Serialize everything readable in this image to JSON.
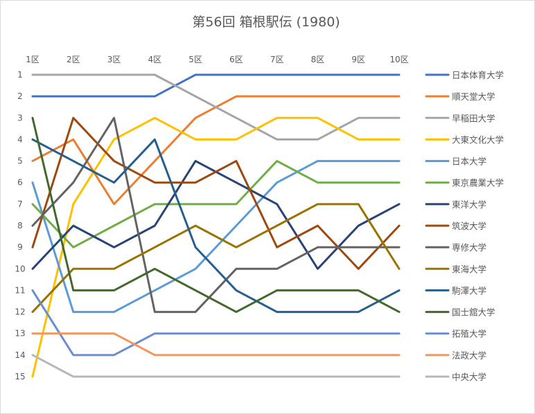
{
  "chart_data": {
    "type": "line",
    "title": "第56回 箱根駅伝 (1980)",
    "xlabel": "",
    "ylabel": "",
    "categories": [
      "1区",
      "2区",
      "3区",
      "4区",
      "5区",
      "6区",
      "7区",
      "8区",
      "9区",
      "10区"
    ],
    "y_ticks": [
      "1",
      "2",
      "3",
      "4",
      "5",
      "6",
      "7",
      "8",
      "9",
      "10",
      "11",
      "12",
      "13",
      "14",
      "15"
    ],
    "ylim": [
      1,
      15
    ],
    "y_inverted": true,
    "grid": false,
    "legend_position": "right",
    "series": [
      {
        "name": "日本体育大学",
        "color": "#4472C4",
        "values": [
          2,
          2,
          2,
          2,
          1,
          1,
          1,
          1,
          1,
          1
        ]
      },
      {
        "name": "順天堂大学",
        "color": "#ED7D31",
        "values": [
          5,
          4,
          7,
          5,
          3,
          2,
          2,
          2,
          2,
          2
        ]
      },
      {
        "name": "早稲田大学",
        "color": "#A5A5A5",
        "values": [
          1,
          1,
          1,
          1,
          2,
          3,
          4,
          4,
          3,
          3
        ]
      },
      {
        "name": "大東文化大学",
        "color": "#FFC000",
        "values": [
          15,
          7,
          4,
          3,
          4,
          4,
          3,
          3,
          4,
          4
        ]
      },
      {
        "name": "日本大学",
        "color": "#5B9BD5",
        "values": [
          6,
          12,
          12,
          11,
          10,
          8,
          6,
          5,
          5,
          5
        ]
      },
      {
        "name": "東京農業大学",
        "color": "#70AD47",
        "values": [
          7,
          9,
          8,
          7,
          7,
          7,
          5,
          6,
          6,
          6
        ]
      },
      {
        "name": "東洋大学",
        "color": "#264478",
        "values": [
          10,
          8,
          9,
          8,
          5,
          6,
          7,
          10,
          8,
          7
        ]
      },
      {
        "name": "筑波大学",
        "color": "#9E480E",
        "values": [
          9,
          3,
          5,
          6,
          6,
          5,
          9,
          8,
          10,
          8
        ]
      },
      {
        "name": "専修大学",
        "color": "#636363",
        "values": [
          8,
          6,
          3,
          12,
          12,
          10,
          10,
          9,
          9,
          9
        ]
      },
      {
        "name": "東海大学",
        "color": "#997300",
        "values": [
          12,
          10,
          10,
          9,
          8,
          9,
          8,
          7,
          7,
          10
        ]
      },
      {
        "name": "駒澤大学",
        "color": "#255E91",
        "values": [
          4,
          5,
          6,
          4,
          9,
          11,
          12,
          12,
          12,
          11
        ]
      },
      {
        "name": "国士舘大学",
        "color": "#43682B",
        "values": [
          3,
          11,
          11,
          10,
          11,
          12,
          11,
          11,
          11,
          12
        ]
      },
      {
        "name": "拓殖大学",
        "color": "#698ED0",
        "values": [
          11,
          14,
          14,
          13,
          13,
          13,
          13,
          13,
          13,
          13
        ]
      },
      {
        "name": "法政大学",
        "color": "#F1975A",
        "values": [
          13,
          13,
          13,
          14,
          14,
          14,
          14,
          14,
          14,
          14
        ]
      },
      {
        "name": "中央大学",
        "color": "#B7B7B7",
        "values": [
          14,
          15,
          15,
          15,
          15,
          15,
          15,
          15,
          15,
          15
        ]
      }
    ]
  }
}
